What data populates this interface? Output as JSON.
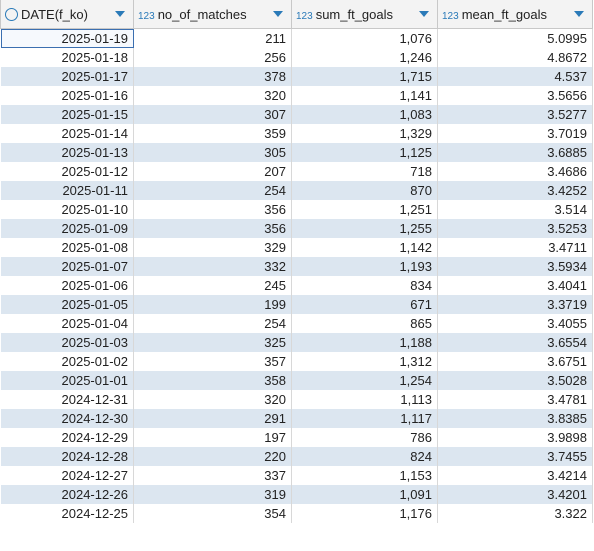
{
  "table": {
    "columns": [
      {
        "name": "DATE(f_ko)"
      },
      {
        "name": "no_of_matches",
        "type_icon": "123"
      },
      {
        "name": "sum_ft_goals",
        "type_icon": "123"
      },
      {
        "name": "mean_ft_goals",
        "type_icon": "123"
      }
    ],
    "rows": [
      [
        "2025-01-19",
        "211",
        "1,076",
        "5.0995"
      ],
      [
        "2025-01-18",
        "256",
        "1,246",
        "4.8672"
      ],
      [
        "2025-01-17",
        "378",
        "1,715",
        "4.537"
      ],
      [
        "2025-01-16",
        "320",
        "1,141",
        "3.5656"
      ],
      [
        "2025-01-15",
        "307",
        "1,083",
        "3.5277"
      ],
      [
        "2025-01-14",
        "359",
        "1,329",
        "3.7019"
      ],
      [
        "2025-01-13",
        "305",
        "1,125",
        "3.6885"
      ],
      [
        "2025-01-12",
        "207",
        "718",
        "3.4686"
      ],
      [
        "2025-01-11",
        "254",
        "870",
        "3.4252"
      ],
      [
        "2025-01-10",
        "356",
        "1,251",
        "3.514"
      ],
      [
        "2025-01-09",
        "356",
        "1,255",
        "3.5253"
      ],
      [
        "2025-01-08",
        "329",
        "1,142",
        "3.4711"
      ],
      [
        "2025-01-07",
        "332",
        "1,193",
        "3.5934"
      ],
      [
        "2025-01-06",
        "245",
        "834",
        "3.4041"
      ],
      [
        "2025-01-05",
        "199",
        "671",
        "3.3719"
      ],
      [
        "2025-01-04",
        "254",
        "865",
        "3.4055"
      ],
      [
        "2025-01-03",
        "325",
        "1,188",
        "3.6554"
      ],
      [
        "2025-01-02",
        "357",
        "1,312",
        "3.6751"
      ],
      [
        "2025-01-01",
        "358",
        "1,254",
        "3.5028"
      ],
      [
        "2024-12-31",
        "320",
        "1,113",
        "3.4781"
      ],
      [
        "2024-12-30",
        "291",
        "1,117",
        "3.8385"
      ],
      [
        "2024-12-29",
        "197",
        "786",
        "3.9898"
      ],
      [
        "2024-12-28",
        "220",
        "824",
        "3.7455"
      ],
      [
        "2024-12-27",
        "337",
        "1,153",
        "3.4214"
      ],
      [
        "2024-12-26",
        "319",
        "1,091",
        "3.4201"
      ],
      [
        "2024-12-25",
        "354",
        "1,176",
        "3.322"
      ]
    ]
  }
}
